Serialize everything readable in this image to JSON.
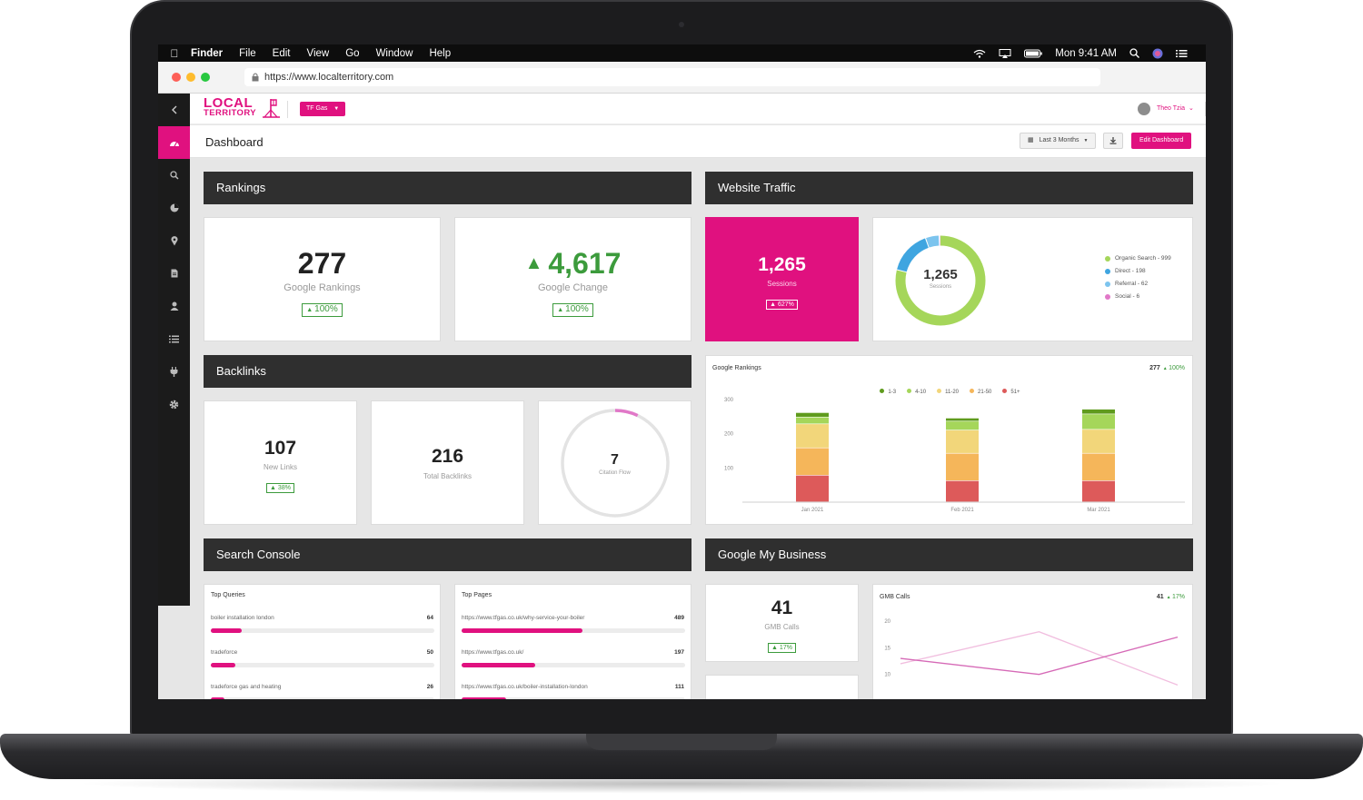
{
  "menubar": {
    "apple": "",
    "items": [
      "Finder",
      "File",
      "Edit",
      "View",
      "Go",
      "Window",
      "Help"
    ],
    "clock": "Mon 9:41 AM"
  },
  "browser": {
    "url": "https://www.localterritory.com"
  },
  "header": {
    "logo_line1": "LOCAL",
    "logo_line2": "TERRITORY",
    "account_button": "TF Gas",
    "user_name": "Theo Tzia"
  },
  "toolbar": {
    "page_title": "Dashboard",
    "range_button": "Last 3 Months",
    "edit_button": "Edit Dashboard"
  },
  "sidebar": {
    "items": [
      {
        "icon": "back-arrow-icon",
        "glyph": "‹"
      },
      {
        "icon": "dashboard-gauge-icon",
        "glyph": "◔"
      },
      {
        "icon": "search-icon",
        "glyph": "⌕"
      },
      {
        "icon": "pie-chart-icon",
        "glyph": "◕"
      },
      {
        "icon": "location-pin-icon",
        "glyph": "⬤"
      },
      {
        "icon": "document-icon",
        "glyph": "▤"
      },
      {
        "icon": "user-icon",
        "glyph": "●"
      },
      {
        "icon": "list-icon",
        "glyph": "☰"
      },
      {
        "icon": "plug-icon",
        "glyph": "⏚"
      },
      {
        "icon": "gear-icon",
        "glyph": "⚙"
      }
    ]
  },
  "colors": {
    "accent": "#e0117f",
    "dark_panel": "#2f2f2f",
    "positive": "#3c9b3c",
    "organic": "#a5d65a",
    "direct": "#3fa5e0",
    "referral": "#7cc4ee",
    "social": "#e178c8",
    "rank_1_3": "#5f9b1d",
    "rank_4_10": "#a5d65a",
    "rank_11_20": "#f2d67a",
    "rank_21_50": "#f5b65a",
    "rank_51_plus": "#dd5a5a"
  },
  "rankings": {
    "title": "Rankings",
    "google_rankings": {
      "value": "277",
      "label": "Google Rankings",
      "change": "100%"
    },
    "google_change": {
      "value": "4,617",
      "label": "Google Change",
      "change": "100%"
    }
  },
  "traffic": {
    "title": "Website Traffic",
    "sessions_card": {
      "value": "1,265",
      "label": "Sessions",
      "change": "627%"
    },
    "donut": {
      "total": "1,265",
      "label": "Sessions",
      "legend": [
        {
          "label": "Organic Search - 999",
          "value": 999
        },
        {
          "label": "Direct - 198",
          "value": 198
        },
        {
          "label": "Referral - 62",
          "value": 62
        },
        {
          "label": "Social - 6",
          "value": 6
        }
      ]
    }
  },
  "backlinks": {
    "title": "Backlinks",
    "new_links": {
      "value": "107",
      "label": "New Links",
      "change": "38%"
    },
    "total": {
      "value": "216",
      "label": "Total Backlinks"
    },
    "citation": {
      "value": "7",
      "label": "Citation Flow",
      "fraction": 0.07
    }
  },
  "chart_data": {
    "type": "bar",
    "title": "Google Rankings",
    "total": "277",
    "total_change": "100%",
    "categories": [
      "Jan 2021",
      "Feb 2021",
      "Mar 2021"
    ],
    "legend": [
      "1-3",
      "4-10",
      "11-20",
      "21-50",
      "51+"
    ],
    "series": [
      {
        "name": "51+",
        "values": [
          78,
          62,
          62
        ]
      },
      {
        "name": "21-50",
        "values": [
          80,
          80,
          80
        ]
      },
      {
        "name": "11-20",
        "values": [
          70,
          68,
          70
        ]
      },
      {
        "name": "4-10",
        "values": [
          20,
          26,
          45
        ]
      },
      {
        "name": "1-3",
        "values": [
          13,
          9,
          14
        ]
      }
    ],
    "yticks": [
      100,
      200,
      300
    ],
    "ylim": [
      0,
      300
    ],
    "stacked": true,
    "legend_position": "top"
  },
  "search_console": {
    "title": "Search Console",
    "queries": {
      "title": "Top Queries",
      "rows": [
        {
          "label": "boiler installation london",
          "count": "64",
          "fraction": 0.14
        },
        {
          "label": "tradeforce",
          "count": "50",
          "fraction": 0.11
        },
        {
          "label": "tradeforce gas and heating",
          "count": "26",
          "fraction": 0.06
        }
      ]
    },
    "pages": {
      "title": "Top Pages",
      "rows": [
        {
          "label": "https://www.tfgas.co.uk/why-service-your-boiler",
          "count": "489",
          "fraction": 0.54
        },
        {
          "label": "https://www.tfgas.co.uk/",
          "count": "197",
          "fraction": 0.33
        },
        {
          "label": "https://www.tfgas.co.uk/boiler-installation-london",
          "count": "111",
          "fraction": 0.2
        }
      ]
    }
  },
  "gmb": {
    "title": "Google My Business",
    "calls_card": {
      "value": "41",
      "label": "GMB Calls",
      "change": "17%"
    },
    "calls_chart": {
      "title": "GMB Calls",
      "total": "41",
      "change": "17%",
      "yticks": [
        10,
        15,
        20
      ],
      "ylim": [
        5,
        20
      ],
      "current": [
        13,
        10,
        17
      ],
      "previous": [
        12,
        18,
        8
      ]
    }
  }
}
